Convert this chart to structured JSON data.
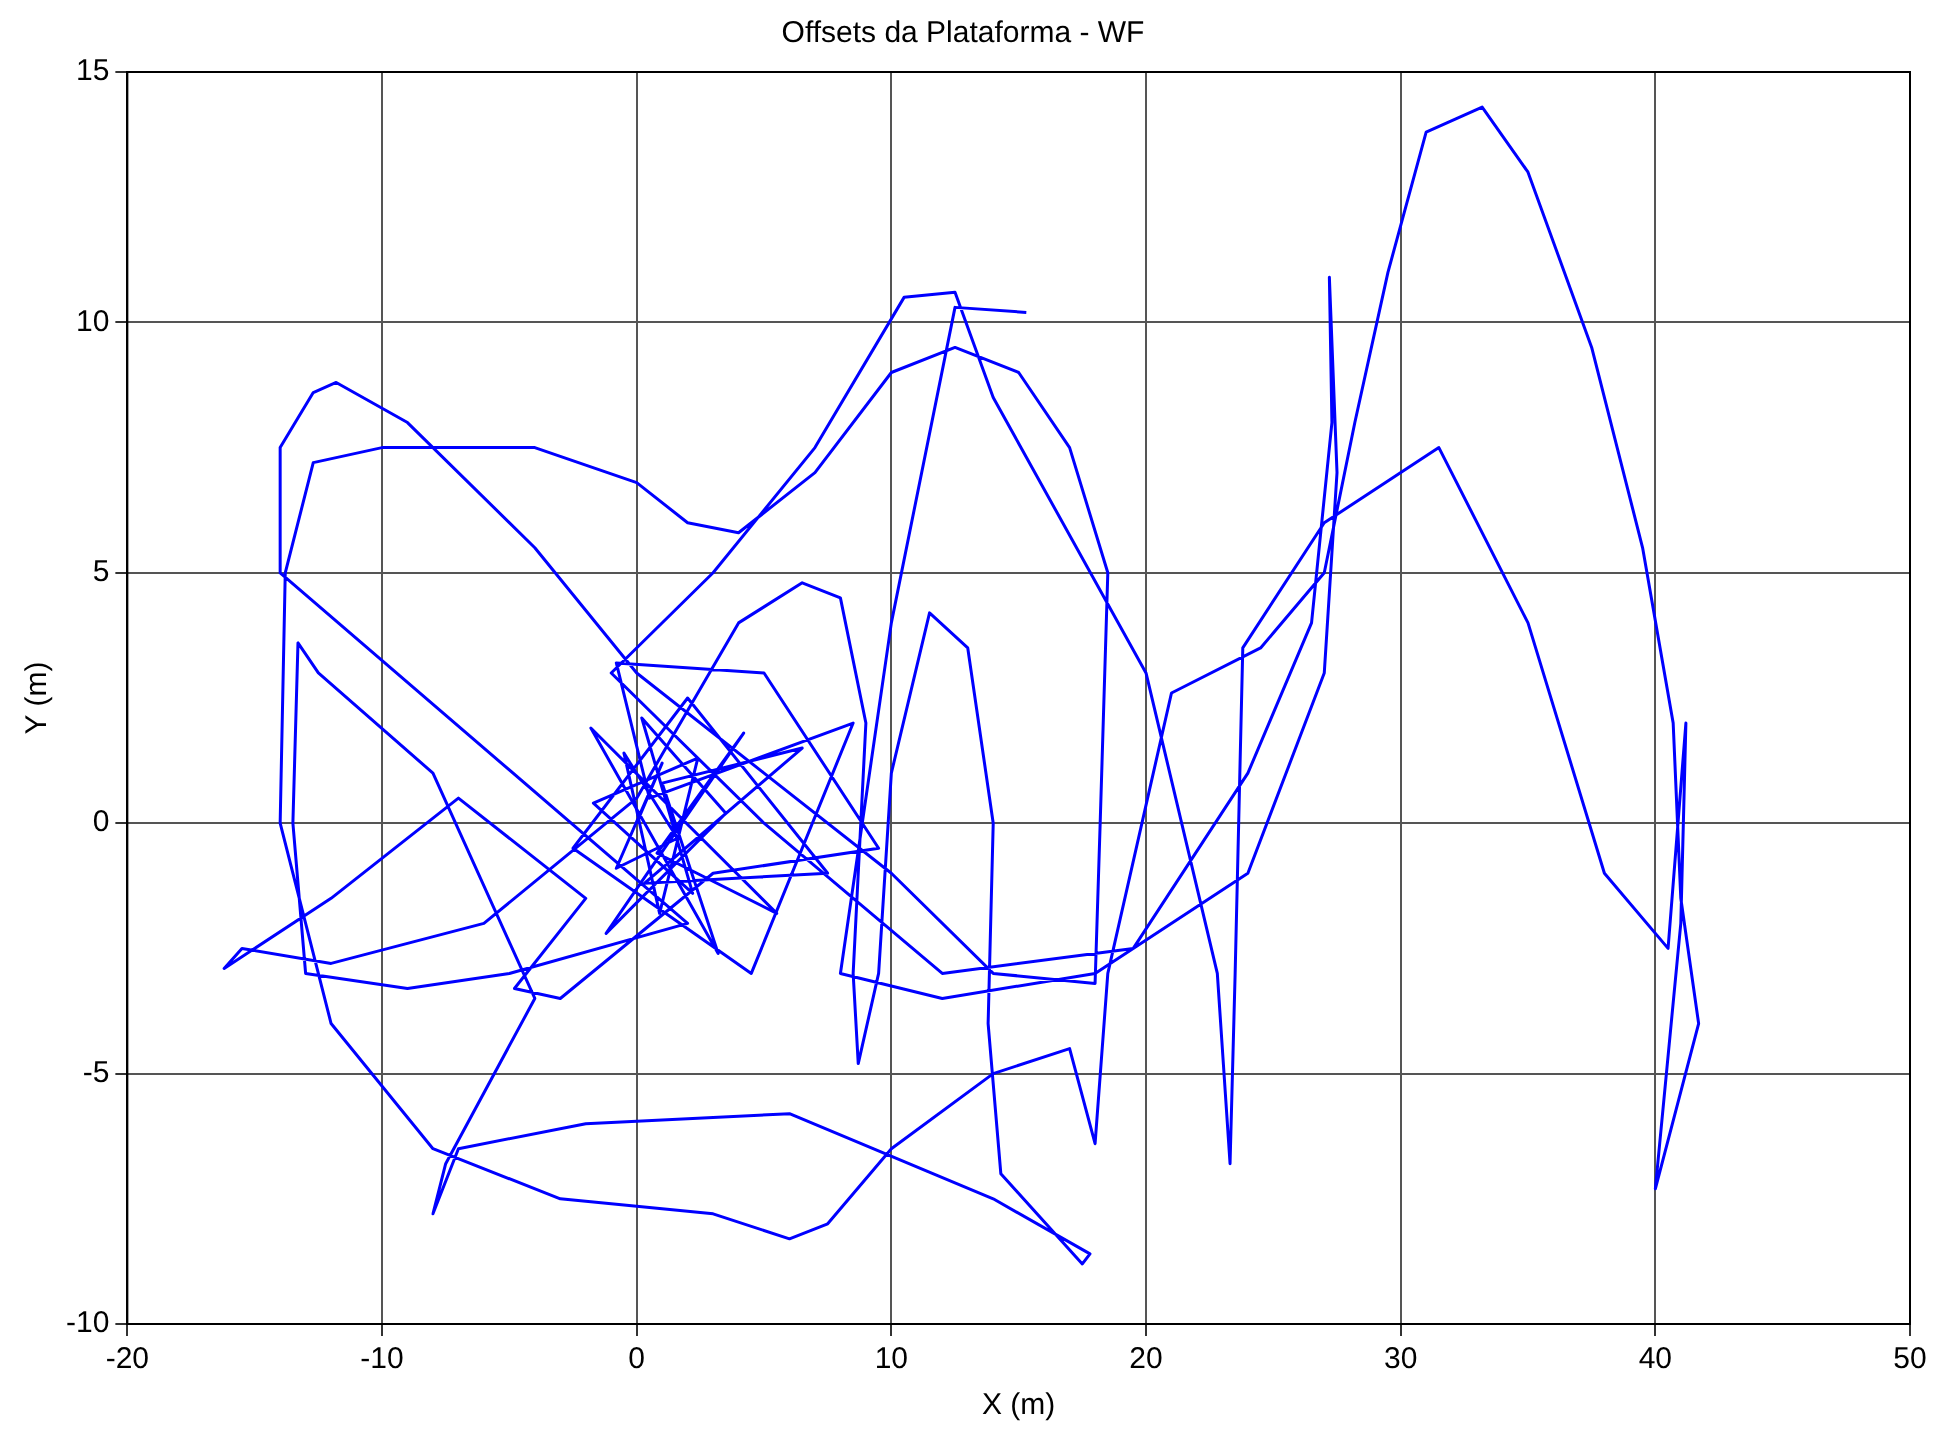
{
  "chart_data": {
    "type": "line",
    "title": "Offsets da Plataforma - WF",
    "xlabel": "X (m)",
    "ylabel": "Y (m)",
    "xlim": [
      -20,
      50
    ],
    "xticks": [
      -20,
      -10,
      0,
      10,
      20,
      30,
      40,
      50
    ],
    "ylim": [
      -10,
      15
    ],
    "yticks": [
      -10,
      -5,
      0,
      5,
      10,
      15
    ],
    "grid": true,
    "marker": "none",
    "line_style": "solid",
    "series": [
      {
        "color": "#0000ff",
        "x": [
          0,
          1,
          -0.8,
          1.6,
          -0.5,
          0.9,
          2.4,
          -1.7,
          2.2,
          0.2,
          3.5,
          -1.2,
          4.2,
          0.8,
          5.5,
          -1.8,
          3.2,
          1,
          6.5,
          0.3,
          7.5,
          2,
          -2.5,
          4.5,
          8.5,
          0.5,
          -0.8,
          5,
          9.5,
          3,
          -3,
          -4.8,
          -2,
          -7,
          -12,
          -16.2,
          -15.5,
          -12,
          -6,
          0,
          4,
          6.5,
          8,
          9,
          8.5,
          8.7,
          9.5,
          10,
          11.5,
          13,
          14,
          13.8,
          14.3,
          17.5,
          17.8,
          14,
          6,
          -2,
          -7,
          -8,
          -7.5,
          -4,
          -8,
          -12.5,
          -13.3,
          -13.5,
          -13,
          -9,
          -5,
          2,
          -14,
          -14,
          -12.7,
          -11.8,
          -9,
          -4,
          0,
          5,
          10,
          14,
          18,
          18.2,
          18.5,
          17,
          15,
          12.5,
          10,
          7,
          4,
          2,
          0,
          -4,
          -10,
          -12.7,
          -13.8,
          -14,
          -12,
          -8,
          -3,
          3,
          6,
          7.5,
          10,
          14,
          17,
          18,
          18.5,
          21,
          24.5,
          27,
          28.2,
          29.5,
          31,
          33.2,
          35,
          37.5,
          39.5,
          40.7,
          41,
          41.7,
          40,
          41,
          41.2,
          40.5,
          38,
          35,
          31.5,
          27,
          23.8,
          23.5,
          23.3,
          22.8,
          20,
          14,
          12.5,
          10.5,
          7,
          3,
          -1,
          5,
          12,
          19.5,
          24,
          26.5,
          27.3,
          27.2,
          27.5,
          27,
          24,
          18,
          12,
          8,
          10,
          12.5,
          15.3
        ],
        "values": [
          0,
          1.2,
          -0.9,
          -0.3,
          1.4,
          -1.8,
          1.3,
          0.4,
          -1.4,
          2.1,
          0.2,
          -2.2,
          1.8,
          -0.6,
          -1.8,
          1.9,
          -2.6,
          0.8,
          1.5,
          -1.2,
          -1,
          2.5,
          -0.5,
          -3,
          2,
          0.5,
          3.2,
          3,
          -0.5,
          -1,
          -3.5,
          -3.3,
          -1.5,
          0.5,
          -1.5,
          -2.9,
          -2.5,
          -2.8,
          -2,
          0.5,
          4,
          4.8,
          4.5,
          2,
          -3,
          -4.8,
          -3,
          1,
          4.2,
          3.5,
          0,
          -4,
          -7,
          -8.8,
          -8.6,
          -7.5,
          -5.8,
          -6,
          -6.5,
          -7.8,
          -6.8,
          -3.5,
          1,
          3,
          3.6,
          0,
          -3,
          -3.3,
          -3,
          -2,
          5,
          7.5,
          8.6,
          8.8,
          8,
          5.5,
          3,
          1,
          -1,
          -3,
          -3.2,
          0,
          5,
          7.5,
          9,
          9.5,
          9,
          7,
          5.8,
          6,
          6.8,
          7.5,
          7.5,
          7.2,
          5,
          0,
          -4,
          -6.5,
          -7.5,
          -7.8,
          -8.3,
          -8,
          -6.5,
          -5,
          -4.5,
          -6.4,
          -3,
          2.6,
          3.5,
          5,
          8,
          11,
          13.8,
          14.3,
          13,
          9.5,
          5.5,
          2,
          -1.5,
          -4,
          -7.3,
          -2,
          2,
          -2.5,
          -1,
          4,
          7.5,
          6,
          3.5,
          -3,
          -6.8,
          -3,
          3,
          8.5,
          10.6,
          10.5,
          7.5,
          5,
          3,
          0,
          -3,
          -2.5,
          1,
          4,
          8,
          10.9,
          7,
          3,
          -1,
          -3,
          -3.5,
          -3,
          4,
          10.3,
          10.2
        ]
      }
    ]
  }
}
